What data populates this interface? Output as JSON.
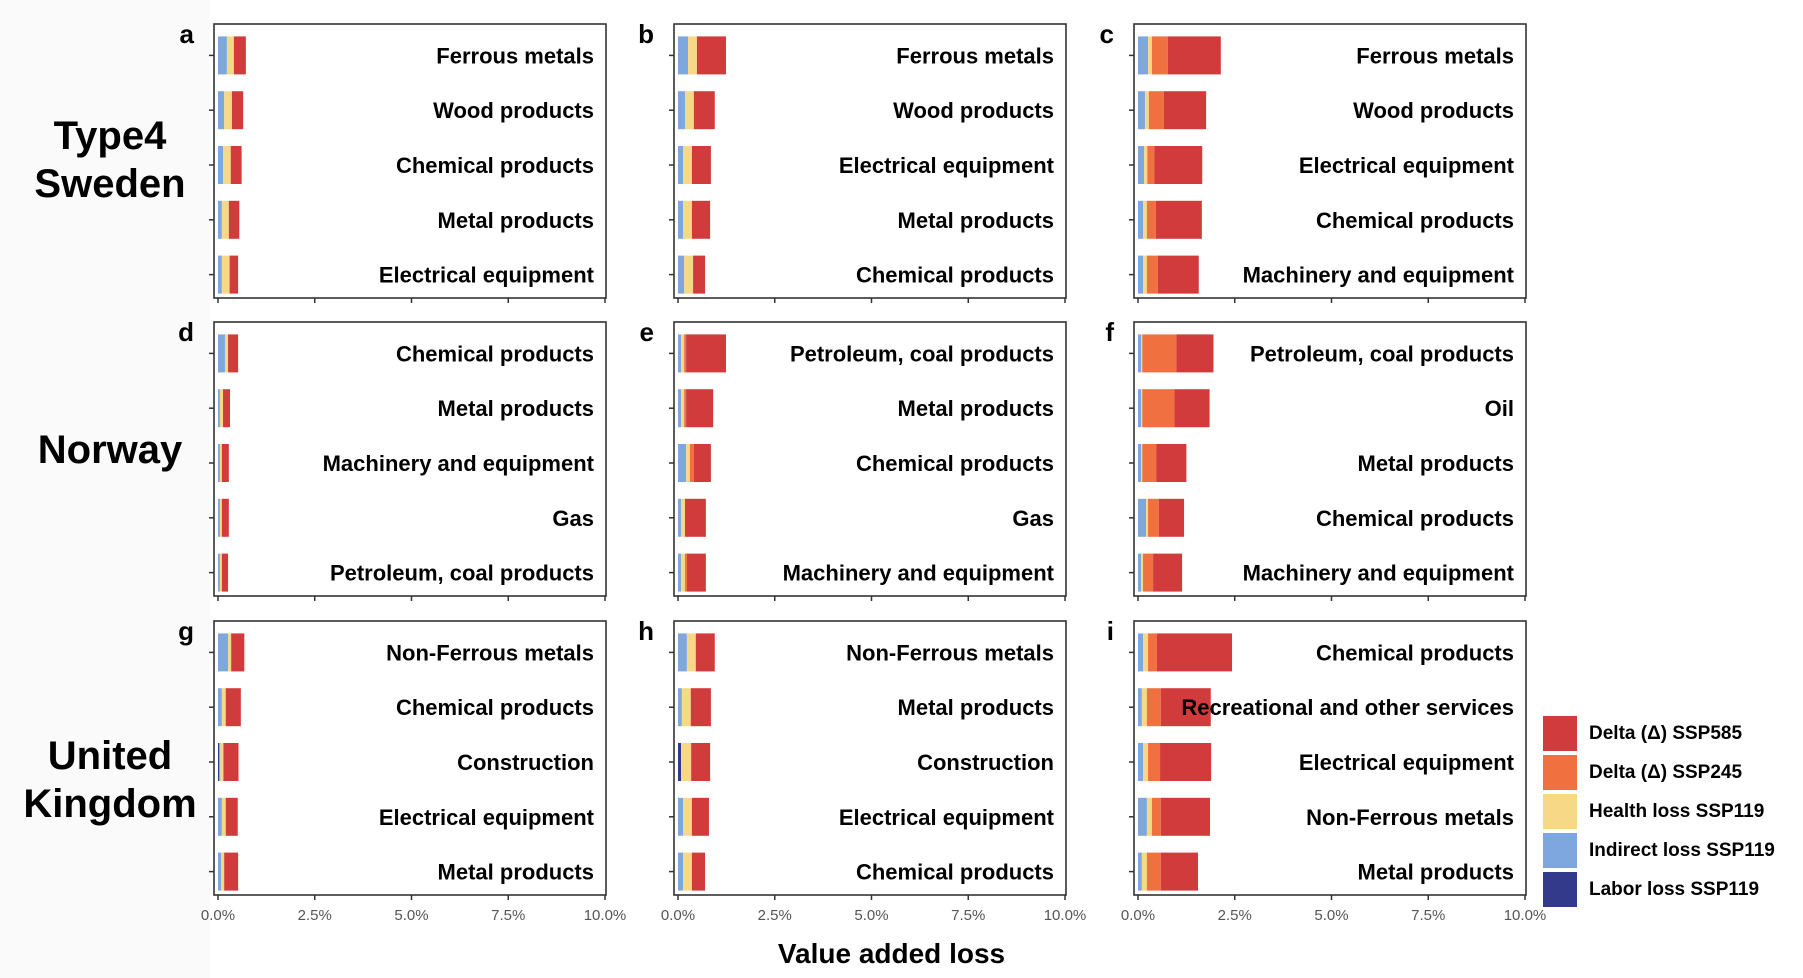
{
  "chart_data": {
    "type": "bar",
    "orientation": "horizontal",
    "stacked": true,
    "xlabel": "Value added loss",
    "xlim": [
      0,
      10
    ],
    "xticks": [
      "0.0%",
      "2.5%",
      "5.0%",
      "7.5%",
      "10.0%"
    ],
    "xtick_values": [
      0,
      2.5,
      5,
      7.5,
      10
    ],
    "units": "percent",
    "legend_position": "right",
    "series_order": [
      "labor",
      "indirect",
      "health",
      "ssp245",
      "ssp585"
    ],
    "legend": [
      {
        "key": "ssp585",
        "label": "Delta (Δ) SSP585",
        "color": "#d13b3b"
      },
      {
        "key": "ssp245",
        "label": "Delta (Δ) SSP245",
        "color": "#f0703f"
      },
      {
        "key": "health",
        "label": "Health loss SSP119",
        "color": "#f7d886"
      },
      {
        "key": "indirect",
        "label": "Indirect loss SSP119",
        "color": "#7ea7e0"
      },
      {
        "key": "labor",
        "label": "Labor loss SSP119",
        "color": "#333a8c"
      }
    ],
    "rows": [
      {
        "label": "Type4\nSweden",
        "label_lines": [
          "Type4",
          "Sweden"
        ]
      },
      {
        "label": "Norway",
        "label_lines": [
          "Norway"
        ]
      },
      {
        "label": "United Kingdom",
        "label_lines": [
          "United",
          "Kingdom"
        ]
      }
    ],
    "panels": [
      {
        "letter": "a",
        "row": 0,
        "col": 0,
        "bars": [
          {
            "sector": "Ferrous metals",
            "labor": 0,
            "indirect": 0.23,
            "health": 0.18,
            "ssp245": 0,
            "ssp585": 0.31
          },
          {
            "sector": "Wood products",
            "labor": 0,
            "indirect": 0.16,
            "health": 0.2,
            "ssp245": 0,
            "ssp585": 0.29
          },
          {
            "sector": "Chemical products",
            "labor": 0,
            "indirect": 0.13,
            "health": 0.2,
            "ssp245": 0,
            "ssp585": 0.28
          },
          {
            "sector": "Metal products",
            "labor": 0,
            "indirect": 0.1,
            "health": 0.18,
            "ssp245": 0,
            "ssp585": 0.27
          },
          {
            "sector": "Electrical equipment",
            "labor": 0,
            "indirect": 0.1,
            "health": 0.2,
            "ssp245": 0,
            "ssp585": 0.22
          }
        ]
      },
      {
        "letter": "b",
        "row": 0,
        "col": 1,
        "bars": [
          {
            "sector": "Ferrous metals",
            "labor": 0,
            "indirect": 0.26,
            "health": 0.23,
            "ssp245": 0,
            "ssp585": 0.75
          },
          {
            "sector": "Wood products",
            "labor": 0,
            "indirect": 0.18,
            "health": 0.23,
            "ssp245": 0,
            "ssp585": 0.54
          },
          {
            "sector": "Electrical equipment",
            "labor": 0,
            "indirect": 0.13,
            "health": 0.23,
            "ssp245": 0,
            "ssp585": 0.49
          },
          {
            "sector": "Metal products",
            "labor": 0,
            "indirect": 0.13,
            "health": 0.23,
            "ssp245": 0,
            "ssp585": 0.47
          },
          {
            "sector": "Chemical products",
            "labor": 0,
            "indirect": 0.16,
            "health": 0.23,
            "ssp245": 0,
            "ssp585": 0.31
          }
        ]
      },
      {
        "letter": "c",
        "row": 0,
        "col": 2,
        "bars": [
          {
            "sector": "Ferrous metals",
            "labor": 0,
            "indirect": 0.26,
            "health": 0.1,
            "ssp245": 0.41,
            "ssp585": 1.37
          },
          {
            "sector": "Wood products",
            "labor": 0,
            "indirect": 0.18,
            "health": 0.1,
            "ssp245": 0.39,
            "ssp585": 1.09
          },
          {
            "sector": "Electrical equipment",
            "labor": 0,
            "indirect": 0.16,
            "health": 0.08,
            "ssp245": 0.18,
            "ssp585": 1.24
          },
          {
            "sector": "Chemical products",
            "labor": 0,
            "indirect": 0.13,
            "health": 0.1,
            "ssp245": 0.23,
            "ssp585": 1.19
          },
          {
            "sector": "Machinery and equipment",
            "labor": 0,
            "indirect": 0.13,
            "health": 0.1,
            "ssp245": 0.28,
            "ssp585": 1.06
          }
        ]
      },
      {
        "letter": "d",
        "row": 1,
        "col": 0,
        "bars": [
          {
            "sector": "Chemical products",
            "labor": 0,
            "indirect": 0.18,
            "health": 0.08,
            "ssp245": 0,
            "ssp585": 0.26
          },
          {
            "sector": "Metal products",
            "labor": 0,
            "indirect": 0.05,
            "health": 0.08,
            "ssp245": 0,
            "ssp585": 0.18
          },
          {
            "sector": "Machinery and equipment",
            "labor": 0,
            "indirect": 0.05,
            "health": 0.05,
            "ssp245": 0,
            "ssp585": 0.18
          },
          {
            "sector": "Gas",
            "labor": 0,
            "indirect": 0.05,
            "health": 0.05,
            "ssp245": 0,
            "ssp585": 0.18
          },
          {
            "sector": "Petroleum, coal products",
            "labor": 0,
            "indirect": 0.05,
            "health": 0.05,
            "ssp245": 0,
            "ssp585": 0.16
          }
        ]
      },
      {
        "letter": "e",
        "row": 1,
        "col": 1,
        "bars": [
          {
            "sector": "Petroleum, coal products",
            "labor": 0,
            "indirect": 0.08,
            "health": 0.08,
            "ssp245": 0.05,
            "ssp585": 1.03
          },
          {
            "sector": "Metal products",
            "labor": 0,
            "indirect": 0.08,
            "health": 0.08,
            "ssp245": 0.05,
            "ssp585": 0.7
          },
          {
            "sector": "Chemical products",
            "labor": 0,
            "indirect": 0.21,
            "health": 0.1,
            "ssp245": 0.1,
            "ssp585": 0.44
          },
          {
            "sector": "Gas",
            "labor": 0,
            "indirect": 0.08,
            "health": 0.1,
            "ssp245": 0,
            "ssp585": 0.54
          },
          {
            "sector": "Machinery and equipment",
            "labor": 0,
            "indirect": 0.08,
            "health": 0.1,
            "ssp245": 0.05,
            "ssp585": 0.49
          }
        ]
      },
      {
        "letter": "f",
        "row": 1,
        "col": 2,
        "bars": [
          {
            "sector": "Petroleum, coal products",
            "labor": 0,
            "indirect": 0.08,
            "health": 0.03,
            "ssp245": 0.88,
            "ssp585": 0.96
          },
          {
            "sector": "Oil",
            "labor": 0,
            "indirect": 0.08,
            "health": 0.03,
            "ssp245": 0.83,
            "ssp585": 0.91
          },
          {
            "sector": "Metal products",
            "labor": 0,
            "indirect": 0.08,
            "health": 0.03,
            "ssp245": 0.36,
            "ssp585": 0.78
          },
          {
            "sector": "Chemical products",
            "labor": 0,
            "indirect": 0.21,
            "health": 0.05,
            "ssp245": 0.28,
            "ssp585": 0.65
          },
          {
            "sector": "Machinery and equipment",
            "labor": 0,
            "indirect": 0.08,
            "health": 0.05,
            "ssp245": 0.26,
            "ssp585": 0.75
          }
        ]
      },
      {
        "letter": "g",
        "row": 2,
        "col": 0,
        "bars": [
          {
            "sector": "Non-Ferrous metals",
            "labor": 0,
            "indirect": 0.26,
            "health": 0.08,
            "ssp245": 0,
            "ssp585": 0.34
          },
          {
            "sector": "Chemical products",
            "labor": 0,
            "indirect": 0.1,
            "health": 0.1,
            "ssp245": 0,
            "ssp585": 0.39
          },
          {
            "sector": "Construction",
            "labor": 0.03,
            "indirect": 0.03,
            "health": 0.08,
            "ssp245": 0,
            "ssp585": 0.39
          },
          {
            "sector": "Electrical equipment",
            "labor": 0,
            "indirect": 0.1,
            "health": 0.1,
            "ssp245": 0,
            "ssp585": 0.31
          },
          {
            "sector": "Metal products",
            "labor": 0,
            "indirect": 0.08,
            "health": 0.08,
            "ssp245": 0,
            "ssp585": 0.36
          }
        ]
      },
      {
        "letter": "h",
        "row": 2,
        "col": 1,
        "bars": [
          {
            "sector": "Non-Ferrous metals",
            "labor": 0,
            "indirect": 0.23,
            "health": 0.23,
            "ssp245": 0,
            "ssp585": 0.49
          },
          {
            "sector": "Metal products",
            "labor": 0,
            "indirect": 0.1,
            "health": 0.23,
            "ssp245": 0,
            "ssp585": 0.52
          },
          {
            "sector": "Construction",
            "labor": 0.08,
            "indirect": 0,
            "health": 0.26,
            "ssp245": 0,
            "ssp585": 0.49
          },
          {
            "sector": "Electrical equipment",
            "labor": 0,
            "indirect": 0.13,
            "health": 0.23,
            "ssp245": 0,
            "ssp585": 0.44
          },
          {
            "sector": "Chemical products",
            "labor": 0,
            "indirect": 0.13,
            "health": 0.23,
            "ssp245": 0,
            "ssp585": 0.34
          }
        ]
      },
      {
        "letter": "i",
        "row": 2,
        "col": 2,
        "bars": [
          {
            "sector": "Chemical products",
            "labor": 0,
            "indirect": 0.13,
            "health": 0.13,
            "ssp245": 0.23,
            "ssp585": 1.94
          },
          {
            "sector": "Recreational and other services",
            "labor": 0,
            "indirect": 0.1,
            "health": 0.13,
            "ssp245": 0.36,
            "ssp585": 1.29
          },
          {
            "sector": "Electrical equipment",
            "labor": 0,
            "indirect": 0.13,
            "health": 0.13,
            "ssp245": 0.31,
            "ssp585": 1.32
          },
          {
            "sector": "Non-Ferrous metals",
            "labor": 0,
            "indirect": 0.23,
            "health": 0.13,
            "ssp245": 0.23,
            "ssp585": 1.27
          },
          {
            "sector": "Metal products",
            "labor": 0,
            "indirect": 0.1,
            "health": 0.13,
            "ssp245": 0.36,
            "ssp585": 0.96
          }
        ]
      }
    ]
  }
}
